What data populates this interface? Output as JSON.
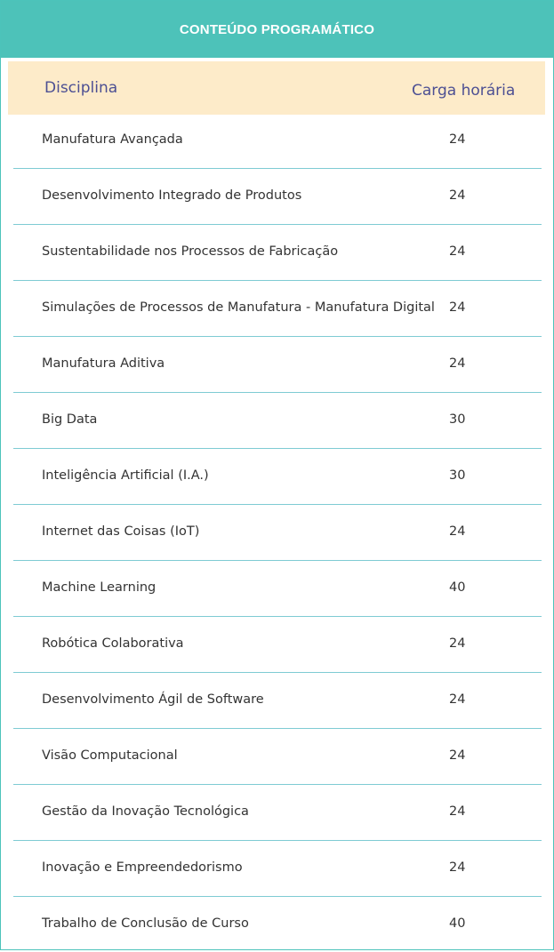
{
  "header": {
    "title": "CONTEÚDO PROGRAMÁTICO"
  },
  "table": {
    "columns": [
      "Disciplina",
      "Carga horária"
    ],
    "rows": [
      {
        "disciplina": "Manufatura Avançada",
        "carga": "24"
      },
      {
        "disciplina": "Desenvolvimento Integrado de Produtos",
        "carga": "24"
      },
      {
        "disciplina": "Sustentabilidade nos Processos de Fabricação",
        "carga": "24"
      },
      {
        "disciplina": "Simulações de Processos de Manufatura - Manufatura Digital",
        "carga": "24"
      },
      {
        "disciplina": "Manufatura Aditiva",
        "carga": "24"
      },
      {
        "disciplina": "Big Data",
        "carga": "30"
      },
      {
        "disciplina": "Inteligência Artificial (I.A.)",
        "carga": "30"
      },
      {
        "disciplina": "Internet das Coisas (IoT)",
        "carga": "24"
      },
      {
        "disciplina": "Machine Learning",
        "carga": "40"
      },
      {
        "disciplina": "Robótica Colaborativa",
        "carga": "24"
      },
      {
        "disciplina": "Desenvolvimento Ágil de Software",
        "carga": "24"
      },
      {
        "disciplina": "Visão Computacional",
        "carga": "24"
      },
      {
        "disciplina": "Gestão da Inovação Tecnológica",
        "carga": "24"
      },
      {
        "disciplina": "Inovação e Empreendedorismo",
        "carga": "24"
      },
      {
        "disciplina": "Trabalho de Conclusão de Curso",
        "carga": "40"
      }
    ]
  },
  "colors": {
    "banner": "#4dc2b9",
    "header_row": "#fdebc9",
    "header_text": "#4c4f93",
    "divider": "#7ecbd3"
  }
}
